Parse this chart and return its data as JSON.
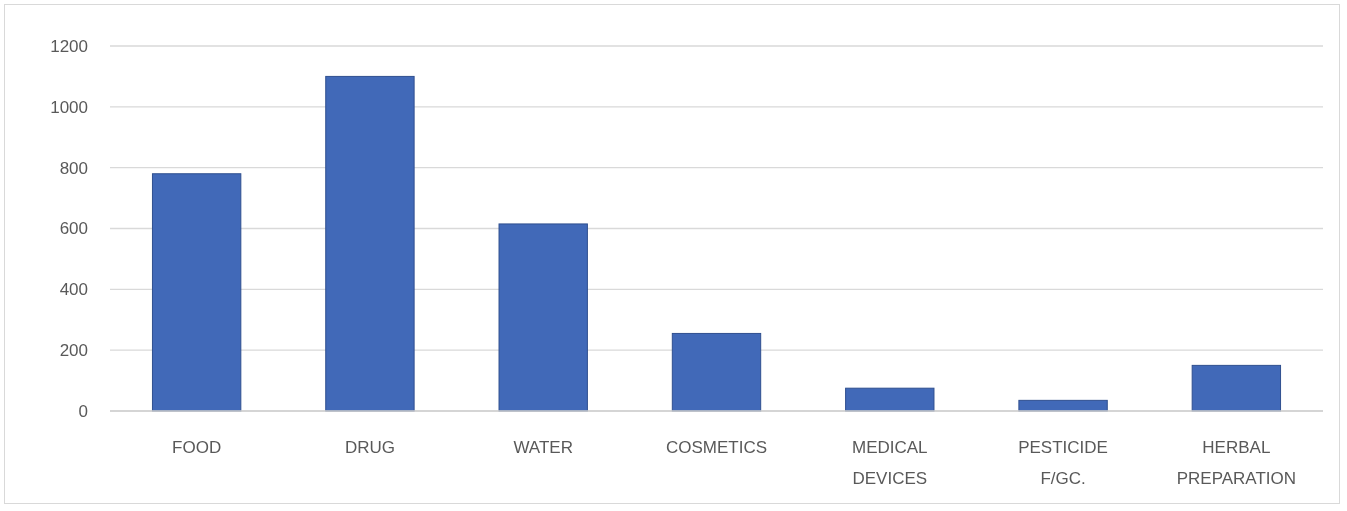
{
  "chart_data": {
    "type": "bar",
    "categories": [
      "FOOD",
      "DRUG",
      "WATER",
      "COSMETICS",
      "MEDICAL DEVICES",
      "PESTICIDE F/GC.",
      "HERBAL PREPARATION"
    ],
    "values": [
      780,
      1100,
      615,
      255,
      75,
      35,
      150
    ],
    "color": "#4169b8",
    "ylim": [
      0,
      1200
    ],
    "yticks": [
      0,
      200,
      400,
      600,
      800,
      1000,
      1200
    ],
    "grid": "y"
  }
}
